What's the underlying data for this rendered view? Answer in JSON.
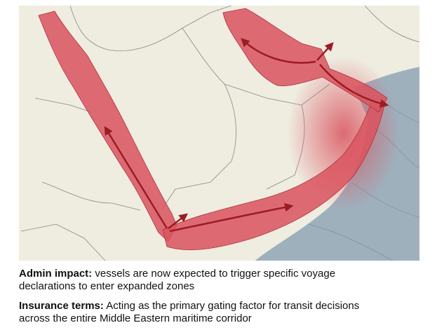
{
  "captions": [
    {
      "label": "Admin impact:",
      "text": "vessels are now expected to trigger specific voyage declarations to enter expanded zones"
    },
    {
      "label": "Insurance terms:",
      "text": "Acting as the primary gating factor for transit decisions across the entire Middle Eastern maritime corridor"
    }
  ]
}
